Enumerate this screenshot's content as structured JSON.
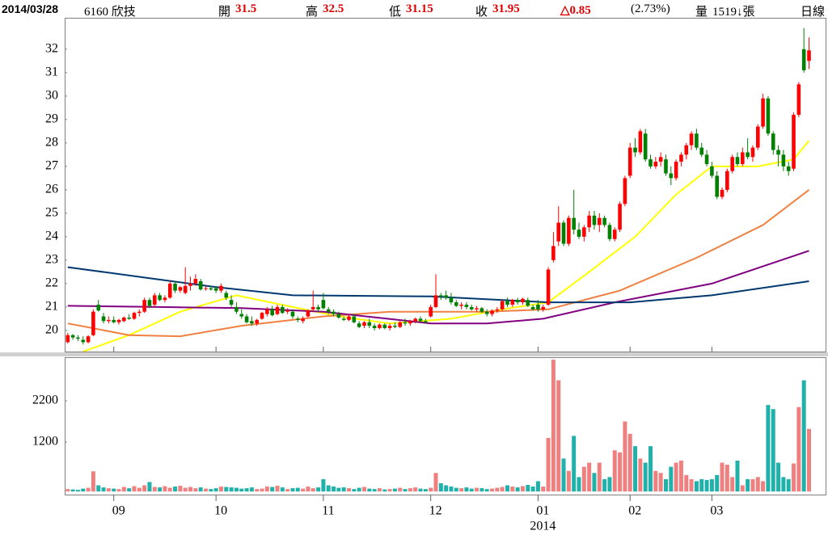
{
  "header": {
    "date": "2014/03/28",
    "stock": "6160 欣技",
    "open_label": "開",
    "open": "31.5",
    "high_label": "高",
    "high": "32.5",
    "low_label": "低",
    "low": "31.15",
    "close_label": "收",
    "close": "31.95",
    "change": "△0.85",
    "change_pct": "(2.73%)",
    "volume_label": "量",
    "volume": "1519↓張",
    "period": "日線"
  },
  "chart_data": [
    {
      "type": "candlestick",
      "up_color": "#ff0000",
      "down_color": "#008000",
      "xlim": [
        -0.6,
        148.4
      ],
      "ylim": [
        19.1,
        33.34
      ],
      "yticks": [
        20,
        21,
        22,
        23,
        24,
        25,
        26,
        27,
        28,
        29,
        30,
        31,
        32
      ],
      "ohlc": [
        [
          19.5,
          19.9,
          19.45,
          19.8
        ],
        [
          19.8,
          19.85,
          19.6,
          19.7
        ],
        [
          19.7,
          19.8,
          19.55,
          19.65
        ],
        [
          19.6,
          19.75,
          19.4,
          19.5
        ],
        [
          19.5,
          19.8,
          19.45,
          19.75
        ],
        [
          19.8,
          20.9,
          19.75,
          20.8
        ],
        [
          21.1,
          21.3,
          20.8,
          20.85
        ],
        [
          20.6,
          20.75,
          20.3,
          20.4
        ],
        [
          20.4,
          20.6,
          20.3,
          20.45
        ],
        [
          20.45,
          20.6,
          20.3,
          20.35
        ],
        [
          20.35,
          20.5,
          20.25,
          20.45
        ],
        [
          20.4,
          20.6,
          20.35,
          20.55
        ],
        [
          20.55,
          20.7,
          20.45,
          20.5
        ],
        [
          20.5,
          20.8,
          20.45,
          20.75
        ],
        [
          20.75,
          20.9,
          20.6,
          20.8
        ],
        [
          20.8,
          21.4,
          20.75,
          21.3
        ],
        [
          21.3,
          21.4,
          20.95,
          21.05
        ],
        [
          21.1,
          21.6,
          21.0,
          21.5
        ],
        [
          21.5,
          21.6,
          21.25,
          21.3
        ],
        [
          21.3,
          21.5,
          21.2,
          21.4
        ],
        [
          21.4,
          22.1,
          21.35,
          22.0
        ],
        [
          22.0,
          22.1,
          21.6,
          21.7
        ],
        [
          21.7,
          21.9,
          21.6,
          21.85
        ],
        [
          21.6,
          22.7,
          21.55,
          21.9
        ],
        [
          21.9,
          22.3,
          21.7,
          22.0
        ],
        [
          22.0,
          22.4,
          21.9,
          22.2
        ],
        [
          22.1,
          22.2,
          21.7,
          21.75
        ],
        [
          21.8,
          21.9,
          21.7,
          21.8
        ],
        [
          21.8,
          21.9,
          21.7,
          21.75
        ],
        [
          21.8,
          21.9,
          21.6,
          21.7
        ],
        [
          21.7,
          22.0,
          21.6,
          21.9
        ],
        [
          21.6,
          21.7,
          21.3,
          21.4
        ],
        [
          21.3,
          21.5,
          21.0,
          21.1
        ],
        [
          21.0,
          21.2,
          20.7,
          20.8
        ],
        [
          20.7,
          20.9,
          20.5,
          20.6
        ],
        [
          20.6,
          20.7,
          20.3,
          20.35
        ],
        [
          20.4,
          20.6,
          20.2,
          20.3
        ],
        [
          20.3,
          20.5,
          20.2,
          20.45
        ],
        [
          20.5,
          20.8,
          20.45,
          20.75
        ],
        [
          20.7,
          21.0,
          20.6,
          20.9
        ],
        [
          20.9,
          21.05,
          20.6,
          20.65
        ],
        [
          20.7,
          21.1,
          20.65,
          21.0
        ],
        [
          21.0,
          21.1,
          20.7,
          20.75
        ],
        [
          20.8,
          20.95,
          20.7,
          20.85
        ],
        [
          20.8,
          20.9,
          20.5,
          20.6
        ],
        [
          20.5,
          20.6,
          20.35,
          20.45
        ],
        [
          20.4,
          20.6,
          20.3,
          20.5
        ],
        [
          20.6,
          20.9,
          20.55,
          20.85
        ],
        [
          20.9,
          21.7,
          20.8,
          21.0
        ],
        [
          21.0,
          21.1,
          20.8,
          20.9
        ],
        [
          21.3,
          21.6,
          20.9,
          20.95
        ],
        [
          20.9,
          21.0,
          20.7,
          20.8
        ],
        [
          20.8,
          20.9,
          20.6,
          20.7
        ],
        [
          20.7,
          20.8,
          20.5,
          20.55
        ],
        [
          20.5,
          20.6,
          20.4,
          20.45
        ],
        [
          20.45,
          20.7,
          20.4,
          20.6
        ],
        [
          20.6,
          20.7,
          20.3,
          20.35
        ],
        [
          20.3,
          20.4,
          20.1,
          20.15
        ],
        [
          20.2,
          20.4,
          20.1,
          20.35
        ],
        [
          20.35,
          20.5,
          20.1,
          20.2
        ],
        [
          20.2,
          20.3,
          20.0,
          20.1
        ],
        [
          20.1,
          20.3,
          20.05,
          20.25
        ],
        [
          20.25,
          20.3,
          20.05,
          20.1
        ],
        [
          20.1,
          20.3,
          20.0,
          20.2
        ],
        [
          20.2,
          20.35,
          20.1,
          20.15
        ],
        [
          20.15,
          20.4,
          20.1,
          20.35
        ],
        [
          20.35,
          20.5,
          20.2,
          20.3
        ],
        [
          20.3,
          20.45,
          20.2,
          20.4
        ],
        [
          20.4,
          20.55,
          20.3,
          20.5
        ],
        [
          20.5,
          20.6,
          20.35,
          20.4
        ],
        [
          20.4,
          20.5,
          20.3,
          20.35
        ],
        [
          20.6,
          21.1,
          20.55,
          21.0
        ],
        [
          21.0,
          22.4,
          20.95,
          21.5
        ],
        [
          21.5,
          21.6,
          21.3,
          21.45
        ],
        [
          21.5,
          21.7,
          21.3,
          21.4
        ],
        [
          21.4,
          21.6,
          21.1,
          21.2
        ],
        [
          21.2,
          21.3,
          21.0,
          21.05
        ],
        [
          21.05,
          21.2,
          20.9,
          21.1
        ],
        [
          21.1,
          21.2,
          20.9,
          21.0
        ],
        [
          21.0,
          21.1,
          20.85,
          20.9
        ],
        [
          20.9,
          21.05,
          20.8,
          20.95
        ],
        [
          20.95,
          21.0,
          20.75,
          20.8
        ],
        [
          20.8,
          20.9,
          20.6,
          20.7
        ],
        [
          20.7,
          20.9,
          20.6,
          20.85
        ],
        [
          20.85,
          21.0,
          20.75,
          20.9
        ],
        [
          20.9,
          21.3,
          20.85,
          21.25
        ],
        [
          21.25,
          21.4,
          21.0,
          21.1
        ],
        [
          21.1,
          21.35,
          21.0,
          21.3
        ],
        [
          21.3,
          21.4,
          21.1,
          21.2
        ],
        [
          21.2,
          21.4,
          21.1,
          21.35
        ],
        [
          21.3,
          21.4,
          21.0,
          21.05
        ],
        [
          21.0,
          21.1,
          20.85,
          20.9
        ],
        [
          21.1,
          21.3,
          20.8,
          20.9
        ],
        [
          20.9,
          21.1,
          20.8,
          21.0
        ],
        [
          21.1,
          22.7,
          21.05,
          22.6
        ],
        [
          23.0,
          24.2,
          22.9,
          23.6
        ],
        [
          23.8,
          25.3,
          23.6,
          24.6
        ],
        [
          24.6,
          24.7,
          23.6,
          23.7
        ],
        [
          23.7,
          24.9,
          23.6,
          24.8
        ],
        [
          24.8,
          26.0,
          24.1,
          24.3
        ],
        [
          24.3,
          24.6,
          23.9,
          24.0
        ],
        [
          24.0,
          24.5,
          23.8,
          24.4
        ],
        [
          24.4,
          25.1,
          24.2,
          24.9
        ],
        [
          24.9,
          25.1,
          24.3,
          24.5
        ],
        [
          24.5,
          25.0,
          24.2,
          24.8
        ],
        [
          24.8,
          24.9,
          24.4,
          24.5
        ],
        [
          24.5,
          24.6,
          23.8,
          23.9
        ],
        [
          23.9,
          24.4,
          23.8,
          24.3
        ],
        [
          24.3,
          25.5,
          24.2,
          25.4
        ],
        [
          25.4,
          26.6,
          25.3,
          26.5
        ],
        [
          26.6,
          28.0,
          26.5,
          27.8
        ],
        [
          27.8,
          28.2,
          27.4,
          27.6
        ],
        [
          27.6,
          28.6,
          27.5,
          28.5
        ],
        [
          28.4,
          28.6,
          27.2,
          27.3
        ],
        [
          27.3,
          27.5,
          26.9,
          27.0
        ],
        [
          27.0,
          27.4,
          26.9,
          27.2
        ],
        [
          27.2,
          27.6,
          27.0,
          27.4
        ],
        [
          27.3,
          27.5,
          26.6,
          26.7
        ],
        [
          26.7,
          27.0,
          26.2,
          26.5
        ],
        [
          26.5,
          27.3,
          26.4,
          27.2
        ],
        [
          27.2,
          27.6,
          27.0,
          27.5
        ],
        [
          27.5,
          28.0,
          27.3,
          27.9
        ],
        [
          27.9,
          28.5,
          27.7,
          28.4
        ],
        [
          28.4,
          28.6,
          27.7,
          27.8
        ],
        [
          27.8,
          28.0,
          27.4,
          27.5
        ],
        [
          27.5,
          27.7,
          27.0,
          27.1
        ],
        [
          27.0,
          27.2,
          26.5,
          26.6
        ],
        [
          26.6,
          26.8,
          25.6,
          25.7
        ],
        [
          25.7,
          26.1,
          25.6,
          26.0
        ],
        [
          26.0,
          26.9,
          25.9,
          26.8
        ],
        [
          26.8,
          27.5,
          26.7,
          27.4
        ],
        [
          27.4,
          27.6,
          27.0,
          27.1
        ],
        [
          27.1,
          27.8,
          27.0,
          27.6
        ],
        [
          27.6,
          28.2,
          27.3,
          27.4
        ],
        [
          27.4,
          27.9,
          27.2,
          27.8
        ],
        [
          27.8,
          28.8,
          27.7,
          28.7
        ],
        [
          28.7,
          30.1,
          28.6,
          29.9
        ],
        [
          29.9,
          30.0,
          28.3,
          28.4
        ],
        [
          28.4,
          28.5,
          27.5,
          27.7
        ],
        [
          27.7,
          27.9,
          27.0,
          27.5
        ],
        [
          27.5,
          27.7,
          26.8,
          27.0
        ],
        [
          27.0,
          27.2,
          26.6,
          26.8
        ],
        [
          26.9,
          29.3,
          26.8,
          29.2
        ],
        [
          29.2,
          30.6,
          29.1,
          30.5
        ],
        [
          32.0,
          32.9,
          31.0,
          31.1
        ],
        [
          31.5,
          32.5,
          31.15,
          31.95
        ]
      ],
      "moving_averages": [
        {
          "color": "#ffff00",
          "x": [
            3,
            12,
            22,
            33,
            44,
            53,
            63,
            75,
            85,
            94,
            102,
            111,
            119,
            126,
            135,
            142,
            145
          ],
          "values": [
            19.1,
            19.8,
            20.8,
            21.5,
            21.0,
            20.6,
            20.3,
            20.5,
            20.9,
            21.2,
            22.5,
            24.0,
            25.8,
            27.0,
            27.0,
            27.3,
            28.1
          ]
        },
        {
          "color": "#f08040",
          "x": [
            0,
            12,
            22,
            34,
            50,
            63,
            82,
            94,
            108,
            123,
            136,
            145
          ],
          "values": [
            20.3,
            19.8,
            19.75,
            20.2,
            20.6,
            20.8,
            20.8,
            20.9,
            21.7,
            23.1,
            24.5,
            26.0
          ]
        },
        {
          "color": "#800080",
          "x": [
            0,
            18,
            34,
            50,
            71,
            82,
            93,
            107,
            126,
            145
          ],
          "values": [
            21.05,
            21.0,
            20.95,
            20.8,
            20.3,
            20.3,
            20.5,
            21.2,
            22.0,
            23.4
          ]
        },
        {
          "color": "#003870",
          "x": [
            0,
            17,
            29,
            44,
            71,
            94,
            110,
            126,
            145
          ],
          "values": [
            22.7,
            22.2,
            21.85,
            21.5,
            21.45,
            21.2,
            21.2,
            21.5,
            22.1
          ]
        }
      ]
    },
    {
      "type": "bar",
      "up_color": "#f08080",
      "down_color": "#20b2aa",
      "xlim": [
        -0.6,
        148.4
      ],
      "ylim": [
        -75,
        3260
      ],
      "yticks": [
        1200,
        2200
      ],
      "xticks": [
        {
          "value": 9,
          "label": "09"
        },
        {
          "value": 29,
          "label": "10"
        },
        {
          "value": 50,
          "label": "11"
        },
        {
          "value": 71,
          "label": "12"
        },
        {
          "value": 92,
          "label": "01",
          "sublabel": "2014"
        },
        {
          "value": 110,
          "label": "02"
        },
        {
          "value": 126,
          "label": "03"
        }
      ],
      "values": [
        60,
        50,
        40,
        70,
        90,
        490,
        150,
        100,
        80,
        70,
        60,
        110,
        80,
        130,
        90,
        150,
        230,
        110,
        100,
        130,
        90,
        120,
        140,
        90,
        110,
        80,
        100,
        70,
        60,
        80,
        120,
        110,
        100,
        90,
        70,
        80,
        100,
        60,
        70,
        120,
        110,
        140,
        100,
        60,
        80,
        90,
        70,
        120,
        80,
        100,
        300,
        150,
        120,
        90,
        100,
        80,
        60,
        90,
        110,
        70,
        60,
        80,
        50,
        60,
        70,
        90,
        60,
        80,
        100,
        70,
        60,
        90,
        450,
        200,
        150,
        120,
        90,
        80,
        100,
        70,
        90,
        80,
        60,
        70,
        90,
        110,
        150,
        120,
        100,
        130,
        160,
        120,
        250,
        120,
        1300,
        3200,
        2700,
        800,
        500,
        1350,
        350,
        600,
        700,
        450,
        700,
        300,
        350,
        1000,
        950,
        1700,
        1400,
        1100,
        800,
        700,
        1100,
        500,
        450,
        300,
        600,
        700,
        750,
        400,
        300,
        250,
        300,
        280,
        300,
        400,
        700,
        650,
        350,
        750,
        150,
        300,
        300,
        350,
        250,
        2100,
        2000,
        700,
        350,
        300,
        680,
        2050,
        2700,
        1519
      ]
    }
  ]
}
